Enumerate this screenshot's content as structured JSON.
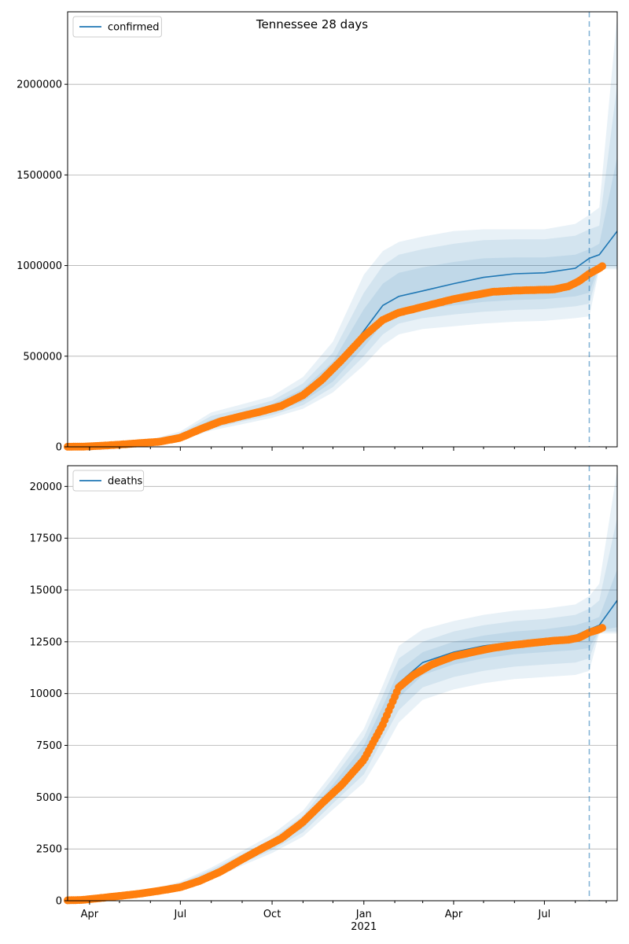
{
  "title": "Tennessee 28 days",
  "colors": {
    "model": "#1f77b4",
    "observed": "#ff7f0e",
    "grid": "#b0b0b0",
    "forecast_line": "#1f77b4"
  },
  "x_axis": {
    "range": [
      "2020-03-10",
      "2021-09-12"
    ],
    "ticks": [
      {
        "date": "2020-04-01",
        "label": "Apr"
      },
      {
        "date": "2020-07-01",
        "label": "Jul"
      },
      {
        "date": "2020-10-01",
        "label": "Oct"
      },
      {
        "date": "2021-01-01",
        "label": "Jan"
      },
      {
        "date": "2021-04-01",
        "label": "Apr"
      },
      {
        "date": "2021-07-01",
        "label": "Jul"
      }
    ],
    "year_label": "2021",
    "forecast_start": "2021-08-15"
  },
  "chart_data": [
    {
      "type": "line",
      "legend": "confirmed",
      "legend_position": "top-left",
      "grid": true,
      "ylim": [
        0,
        2400000
      ],
      "yticks": [
        {
          "value": 0,
          "label": "0"
        },
        {
          "value": 500000,
          "label": "500000"
        },
        {
          "value": 1000000,
          "label": "1000000"
        },
        {
          "value": 1500000,
          "label": "1500000"
        },
        {
          "value": 2000000,
          "label": "2000000"
        }
      ],
      "model": {
        "x": [
          "2020-03-10",
          "2020-04-01",
          "2020-05-01",
          "2020-06-01",
          "2020-07-01",
          "2020-08-01",
          "2020-09-01",
          "2020-10-01",
          "2020-11-01",
          "2020-12-01",
          "2021-01-01",
          "2021-01-20",
          "2021-02-05",
          "2021-03-01",
          "2021-04-01",
          "2021-05-01",
          "2021-06-01",
          "2021-07-01",
          "2021-08-01",
          "2021-08-15",
          "2021-08-25",
          "2021-09-12"
        ],
        "y": [
          1000,
          3000,
          12000,
          25000,
          55000,
          130000,
          170000,
          210000,
          280000,
          410000,
          640000,
          780000,
          830000,
          860000,
          900000,
          935000,
          955000,
          960000,
          985000,
          1040000,
          1060000,
          1190000
        ],
        "bands": [
          {
            "lower": [
              500,
              2000,
              9000,
              20000,
              45000,
              110000,
              150000,
              190000,
              250000,
              360000,
              550000,
              680000,
              730000,
              760000,
              780000,
              800000,
              810000,
              815000,
              830000,
              850000,
              1000000,
              1000000
            ],
            "upper": [
              1500,
              4000,
              15000,
              30000,
              65000,
              150000,
              190000,
              235000,
              320000,
              470000,
              760000,
              900000,
              960000,
              990000,
              1020000,
              1040000,
              1045000,
              1045000,
              1060000,
              1090000,
              1120000,
              1600000
            ]
          },
          {
            "lower": [
              300,
              1500,
              7000,
              17000,
              40000,
              100000,
              140000,
              175000,
              230000,
              330000,
              500000,
              620000,
              680000,
              710000,
              730000,
              745000,
              755000,
              760000,
              775000,
              790000,
              990000,
              990000
            ],
            "upper": [
              1800,
              5000,
              18000,
              35000,
              75000,
              170000,
              210000,
              255000,
              350000,
              520000,
              850000,
              1000000,
              1060000,
              1090000,
              1120000,
              1140000,
              1145000,
              1145000,
              1165000,
              1200000,
              1220000,
              2000000
            ]
          },
          {
            "lower": [
              100,
              1000,
              5000,
              14000,
              35000,
              90000,
              125000,
              160000,
              210000,
              300000,
              450000,
              560000,
              620000,
              650000,
              665000,
              680000,
              690000,
              695000,
              710000,
              720000,
              980000,
              980000
            ],
            "upper": [
              2200,
              6000,
              21000,
              40000,
              85000,
              190000,
              235000,
              280000,
              385000,
              580000,
              950000,
              1080000,
              1130000,
              1160000,
              1190000,
              1200000,
              1200000,
              1200000,
              1230000,
              1280000,
              1320000,
              2380000
            ]
          }
        ]
      },
      "observed": {
        "x": [
          "2020-03-10",
          "2020-03-25",
          "2020-04-10",
          "2020-05-01",
          "2020-05-20",
          "2020-06-10",
          "2020-07-01",
          "2020-07-20",
          "2020-08-10",
          "2020-09-01",
          "2020-09-20",
          "2020-10-10",
          "2020-11-01",
          "2020-11-20",
          "2020-12-10",
          "2021-01-01",
          "2021-01-20",
          "2021-02-05",
          "2021-02-20",
          "2021-03-10",
          "2021-04-01",
          "2021-04-20",
          "2021-05-10",
          "2021-06-01",
          "2021-06-20",
          "2021-07-10",
          "2021-07-25",
          "2021-08-05",
          "2021-08-15",
          "2021-08-25",
          "2021-08-29"
        ],
        "y": [
          500,
          1000,
          5000,
          12000,
          20000,
          28000,
          50000,
          95000,
          140000,
          170000,
          195000,
          225000,
          285000,
          370000,
          480000,
          610000,
          700000,
          740000,
          760000,
          785000,
          815000,
          835000,
          855000,
          862000,
          865000,
          868000,
          885000,
          915000,
          955000,
          985000,
          1000000
        ]
      }
    },
    {
      "type": "line",
      "legend": "deaths",
      "legend_position": "top-left",
      "grid": true,
      "ylim": [
        0,
        21000
      ],
      "yticks": [
        {
          "value": 0,
          "label": "0"
        },
        {
          "value": 2500,
          "label": "2500"
        },
        {
          "value": 5000,
          "label": "5000"
        },
        {
          "value": 7500,
          "label": "7500"
        },
        {
          "value": 10000,
          "label": "10000"
        },
        {
          "value": 12500,
          "label": "12500"
        },
        {
          "value": 15000,
          "label": "15000"
        },
        {
          "value": 17500,
          "label": "17500"
        },
        {
          "value": 20000,
          "label": "20000"
        }
      ],
      "model": {
        "x": [
          "2020-03-10",
          "2020-04-01",
          "2020-05-01",
          "2020-06-01",
          "2020-07-01",
          "2020-08-01",
          "2020-09-01",
          "2020-10-01",
          "2020-11-01",
          "2020-12-01",
          "2021-01-01",
          "2021-01-20",
          "2021-02-05",
          "2021-03-01",
          "2021-04-01",
          "2021-05-01",
          "2021-06-01",
          "2021-07-01",
          "2021-08-01",
          "2021-08-15",
          "2021-08-25",
          "2021-09-12"
        ],
        "y": [
          20,
          50,
          220,
          420,
          700,
          1300,
          2000,
          2700,
          3700,
          5300,
          7000,
          8800,
          10500,
          11500,
          12000,
          12300,
          12500,
          12600,
          12800,
          13100,
          13300,
          14500
        ],
        "bands": [
          {
            "lower": [
              10,
              40,
              180,
              380,
              620,
              1200,
              1900,
              2600,
              3500,
              5000,
              6500,
              8300,
              9800,
              10900,
              11400,
              11700,
              11900,
              12000,
              12100,
              12200,
              13050,
              13200
            ],
            "upper": [
              30,
              60,
              250,
              460,
              780,
              1400,
              2100,
              2850,
              3900,
              5600,
              7500,
              9400,
              11100,
              12000,
              12500,
              12800,
              13000,
              13100,
              13300,
              13500,
              13700,
              16000
            ]
          },
          {
            "lower": [
              5,
              30,
              150,
              340,
              560,
              1100,
              1800,
              2450,
              3300,
              4700,
              6100,
              7800,
              9200,
              10300,
              10800,
              11100,
              11300,
              11400,
              11500,
              11700,
              13000,
              13000
            ],
            "upper": [
              40,
              70,
              280,
              500,
              850,
              1500,
              2250,
              3000,
              4100,
              5900,
              7900,
              9900,
              11700,
              12500,
              13000,
              13300,
              13500,
              13600,
              13800,
              14100,
              14500,
              18500
            ]
          },
          {
            "lower": [
              0,
              20,
              120,
              300,
              500,
              1000,
              1700,
              2300,
              3100,
              4400,
              5700,
              7200,
              8600,
              9700,
              10200,
              10500,
              10700,
              10800,
              10900,
              11100,
              12900,
              12900
            ],
            "upper": [
              50,
              80,
              300,
              540,
              920,
              1600,
              2400,
              3200,
              4350,
              6200,
              8300,
              10400,
              12300,
              13100,
              13500,
              13800,
              14000,
              14100,
              14300,
              14700,
              15300,
              20800
            ]
          }
        ]
      },
      "observed": {
        "x": [
          "2020-03-10",
          "2020-03-25",
          "2020-04-10",
          "2020-05-01",
          "2020-05-20",
          "2020-06-10",
          "2020-07-01",
          "2020-07-20",
          "2020-08-10",
          "2020-09-01",
          "2020-09-20",
          "2020-10-10",
          "2020-11-01",
          "2020-11-20",
          "2020-12-10",
          "2021-01-01",
          "2021-01-20",
          "2021-02-05",
          "2021-02-20",
          "2021-03-10",
          "2021-04-01",
          "2021-04-20",
          "2021-05-10",
          "2021-06-01",
          "2021-06-20",
          "2021-07-10",
          "2021-07-25",
          "2021-08-05",
          "2021-08-15",
          "2021-08-25",
          "2021-08-29"
        ],
        "y": [
          20,
          40,
          120,
          230,
          330,
          480,
          650,
          950,
          1400,
          2000,
          2500,
          3000,
          3800,
          4700,
          5600,
          6800,
          8500,
          10300,
          10900,
          11400,
          11800,
          12000,
          12200,
          12350,
          12450,
          12550,
          12600,
          12700,
          12950,
          13100,
          13200
        ]
      }
    }
  ]
}
